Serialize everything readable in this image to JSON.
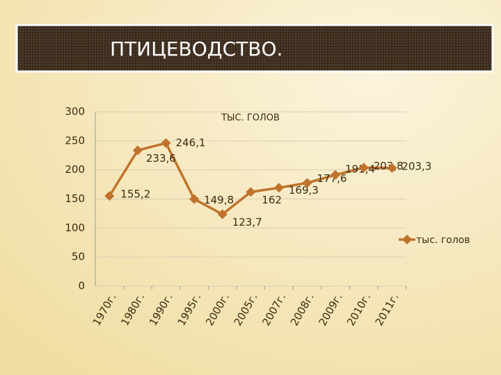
{
  "slide_title": "ПТИЦЕВОДСТВО.",
  "chart_data": {
    "type": "line",
    "title": "ТЫС. ГОЛОВ",
    "categories": [
      "1970г.",
      "1980г.",
      "1990г.",
      "1995г.",
      "2000г.",
      "2005г.",
      "2007г.",
      "2008г.",
      "2009г.",
      "2010г.",
      "2011г."
    ],
    "series": [
      {
        "name": "тыс. голов",
        "color": "#c0732c",
        "values": [
          155.2,
          233.6,
          246.1,
          149.8,
          123.7,
          162,
          169.3,
          177.6,
          191.4,
          203.8,
          203.3
        ],
        "value_labels": [
          "155,2",
          "233,6",
          "246,1",
          "149,8",
          "123,7",
          "162",
          "169,3",
          "177,6",
          "191,4",
          "203,8",
          "203,3"
        ]
      }
    ],
    "ylim": [
      0,
      300
    ],
    "yticks": [
      0,
      50,
      100,
      150,
      200,
      250,
      300
    ],
    "grid": true,
    "legend": "right"
  }
}
